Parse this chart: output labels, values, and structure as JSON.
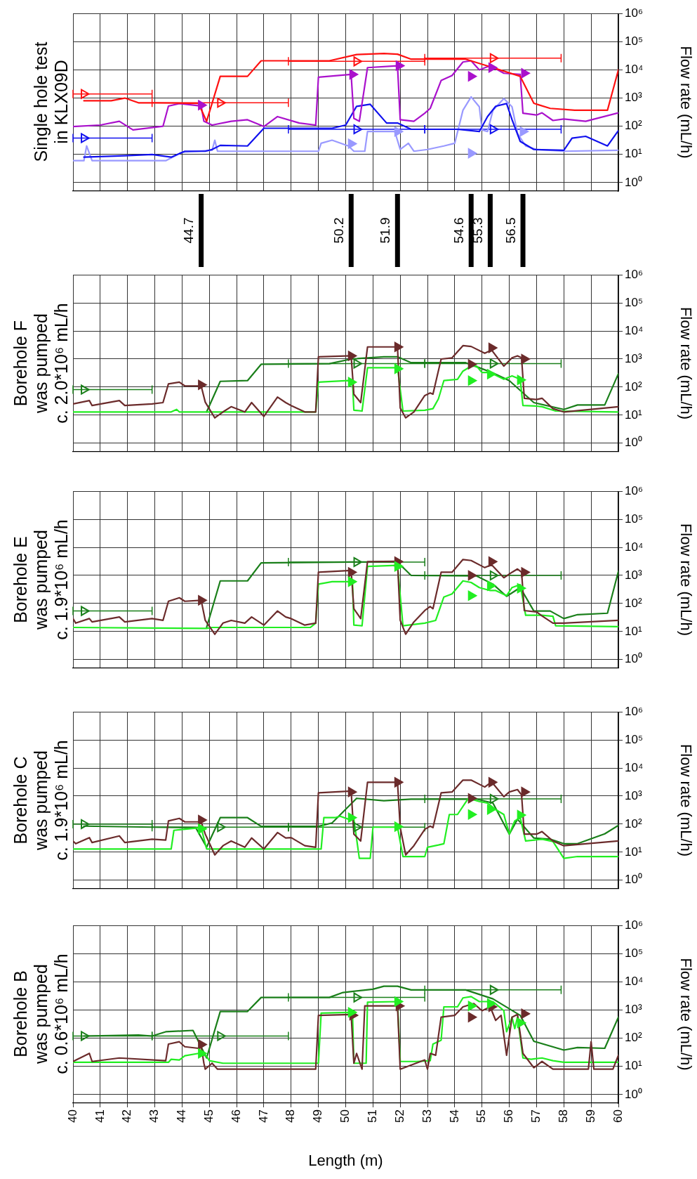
{
  "chart_data": [
    {
      "type": "line",
      "title": "Single hole test\nin KLX09D",
      "ylabel": "Flow rate (mL/h)",
      "xlim": [
        40,
        60
      ],
      "xticks": [
        40,
        41,
        42,
        43,
        44,
        45,
        46,
        47,
        48,
        49,
        50,
        51,
        52,
        53,
        54,
        55,
        56,
        57,
        58,
        59,
        60
      ],
      "ylim": [
        0.5,
        1000000
      ],
      "yticks": [
        {
          "value": 1,
          "label": "10⁰"
        },
        {
          "value": 10,
          "label": "10¹"
        },
        {
          "value": 100,
          "label": "10²"
        },
        {
          "value": 1000,
          "label": "10³"
        },
        {
          "value": 10000,
          "label": "10⁴"
        },
        {
          "value": 100000,
          "label": "10⁵"
        },
        {
          "value": 1000000,
          "label": "10⁶"
        }
      ],
      "log": "y",
      "grid": true,
      "tick_labels": "y",
      "series": [
        {
          "type": "line",
          "marker": "none",
          "color": "#ff1111",
          "x": [
            40.4,
            41.4,
            41.9,
            42.4,
            42.9,
            44.6,
            44.9,
            45.4,
            46.4,
            46.9,
            49.4,
            50.4,
            51.4,
            51.9,
            52.4,
            54.4,
            55.4,
            56.4,
            56.9,
            57.5,
            58.4,
            59.6,
            60
          ],
          "values": [
            800,
            800,
            1000,
            680,
            680,
            650,
            150,
            5900,
            5900,
            21000,
            21000,
            35000,
            38000,
            36000,
            24000,
            24000,
            12000,
            5900,
            650,
            430,
            370,
            370,
            10000
          ]
        },
        {
          "type": "line",
          "marker": "none",
          "color": "#aa11cc",
          "x": [
            40,
            41,
            41.7,
            42.2,
            43.3,
            43.5,
            43.9,
            44.7,
            44.8,
            45.1,
            45.8,
            46.4,
            47,
            47.5,
            48.3,
            48.9,
            49,
            50.2,
            50.3,
            50.5,
            50.8,
            51.9,
            52,
            52.5,
            52.9,
            53.1,
            53.5,
            53.9,
            54.3,
            54.6,
            54.9,
            55.3,
            55.8,
            56.4,
            56.5,
            57,
            57.2,
            57.6,
            58,
            58.8,
            60
          ],
          "values": [
            98,
            110,
            150,
            74,
            100,
            520,
            640,
            520,
            150,
            110,
            150,
            170,
            98,
            220,
            130,
            110,
            5500,
            6900,
            190,
            150,
            12000,
            14000,
            170,
            150,
            290,
            430,
            4200,
            6300,
            19000,
            21000,
            10000,
            14000,
            7600,
            6900,
            290,
            250,
            300,
            160,
            180,
            150,
            300
          ]
        },
        {
          "type": "line",
          "marker": "none",
          "color": "#1111ee",
          "x": [
            40.4,
            41.9,
            42.9,
            43.6,
            44.1,
            44.85,
            45.1,
            45.4,
            46.4,
            47,
            49.5,
            50,
            50.4,
            50.9,
            51.5,
            51.9,
            52.4,
            54.1,
            54.9,
            55.2,
            55.5,
            55.9,
            56.1,
            56.4,
            56.9,
            58,
            58.3,
            58.8,
            59.6,
            60
          ],
          "values": [
            8,
            9,
            10,
            8,
            13,
            13,
            15,
            21,
            20,
            85,
            85,
            110,
            510,
            600,
            130,
            130,
            78,
            78,
            65,
            220,
            510,
            640,
            170,
            29,
            15,
            14,
            38,
            44,
            20,
            70
          ]
        },
        {
          "type": "line",
          "marker": "none",
          "color": "#9999ff",
          "x": [
            40,
            40.4,
            40.5,
            40.7,
            43.4,
            44,
            45.1,
            45.2,
            45.3,
            49,
            49.1,
            49.5,
            50.1,
            50.3,
            50.7,
            50.8,
            51.8,
            52,
            52.3,
            52.5,
            53,
            53.6,
            54,
            54.3,
            54.6,
            54.9,
            55,
            55.2,
            55.4,
            55.8,
            56.1,
            56.3,
            56.6,
            57,
            58,
            60
          ],
          "values": [
            6,
            6,
            20,
            6,
            6,
            12,
            14,
            32,
            13,
            13,
            25,
            32,
            20,
            13,
            13,
            65,
            65,
            15,
            25,
            13,
            15,
            20,
            25,
            370,
            1100,
            490,
            74,
            65,
            370,
            960,
            490,
            56,
            20,
            15,
            13,
            14
          ]
        },
        {
          "type": "scatter",
          "marker": "triangle",
          "color": "#ff1111",
          "x": [
            40.4,
            45.4,
            50.4,
            55.4
          ],
          "values": [
            1400,
            680,
            20000,
            26000
          ],
          "xerrors": [
            [
              40,
              42.9
            ],
            2.5,
            2.5,
            2.5
          ]
        },
        {
          "type": "scatter",
          "marker": "triangle",
          "color": "#1111ee",
          "x": [
            40.4,
            50.4,
            55.4
          ],
          "values": [
            38,
            78,
            78
          ],
          "xerrors": [
            [
              40,
              42.9
            ],
            2.5,
            2.5
          ]
        },
        {
          "type": "scatter",
          "marker": "triangle",
          "color": "#aa11cc",
          "x": [
            44.7,
            50.25,
            51.95,
            54.6,
            55.35,
            56.55
          ],
          "values": [
            560,
            6900,
            14000,
            5900,
            12000,
            7600
          ]
        },
        {
          "type": "scatter",
          "marker": "triangle",
          "color": "#9999ff",
          "x": [
            50.2,
            51.9,
            54.6,
            56.5
          ],
          "values": [
            24,
            65,
            11,
            65
          ]
        }
      ],
      "ref_lines": [
        {
          "axis": "x",
          "value": 44.7,
          "label": "44.7"
        },
        {
          "axis": "x",
          "value": 50.2,
          "label": "50.2"
        },
        {
          "axis": "x",
          "value": 51.9,
          "label": "51.9"
        },
        {
          "axis": "x",
          "value": 54.6,
          "label": "54.6"
        },
        {
          "axis": "x",
          "value": 55.3,
          "label": "55.3"
        },
        {
          "axis": "x",
          "value": 56.5,
          "label": "56.5"
        }
      ]
    },
    {
      "type": "line",
      "title": "Borehole F\nwas pumped\nc. 2.0*10⁶ mL/h",
      "ylabel": "Flow rate (mL/h)",
      "xlim": [
        40,
        60
      ],
      "xticks": [
        40,
        41,
        42,
        43,
        44,
        45,
        46,
        47,
        48,
        49,
        50,
        51,
        52,
        53,
        54,
        55,
        56,
        57,
        58,
        59,
        60
      ],
      "ylim": [
        0.5,
        1000000
      ],
      "yticks": [
        {
          "value": 1,
          "label": "10⁰"
        },
        {
          "value": 10,
          "label": "10¹"
        },
        {
          "value": 100,
          "label": "10²"
        },
        {
          "value": 1000,
          "label": "10³"
        },
        {
          "value": 10000,
          "label": "10⁴"
        },
        {
          "value": 100000,
          "label": "10⁵"
        },
        {
          "value": 1000000,
          "label": "10⁶"
        }
      ],
      "log": "y",
      "grid": true,
      "tick_labels": "y",
      "series": [
        {
          "type": "line",
          "marker": "none",
          "color": "#6b2b2b",
          "x": [
            40,
            40.6,
            40.7,
            41.7,
            41.9,
            42.9,
            43.3,
            43.5,
            43.9,
            44.1,
            44.7,
            44.85,
            45.2,
            45.5,
            45.8,
            46.3,
            46.55,
            47,
            47.5,
            47.8,
            48,
            48.5,
            48.9,
            49,
            50.2,
            50.3,
            50.55,
            50.8,
            51.9,
            52,
            52.2,
            52.5,
            52.9,
            53.1,
            53.2,
            53.5,
            53.9,
            54.3,
            54.6,
            55.1,
            55.35,
            55.8,
            56.1,
            56.3,
            56.45,
            56.55,
            57,
            57.2,
            57.6,
            58,
            60
          ],
          "values": [
            25,
            33,
            22,
            33,
            22,
            25,
            28,
            130,
            150,
            110,
            110,
            29,
            8,
            13,
            20,
            13,
            28,
            9,
            44,
            28,
            22,
            13,
            13,
            1200,
            1300,
            56,
            28,
            2700,
            2700,
            18,
            8,
            13,
            50,
            62,
            56,
            1000,
            1100,
            3000,
            2800,
            1600,
            2100,
            560,
            1100,
            1300,
            1100,
            40,
            36,
            40,
            17,
            13,
            20
          ]
        },
        {
          "type": "line",
          "marker": "none",
          "color": "#22ee22",
          "x": [
            40,
            43.6,
            43.8,
            43.9,
            48.9,
            49,
            50.1,
            50.25,
            50.3,
            50.6,
            50.8,
            51.9,
            52.1,
            52.9,
            53.2,
            53.4,
            53.6,
            54.1,
            54.3,
            54.6,
            54.8,
            55,
            55.3,
            55.8,
            56.1,
            56.4,
            56.5,
            57,
            57.2,
            57.7,
            60
          ],
          "values": [
            13,
            13,
            16,
            13,
            13,
            150,
            170,
            150,
            15,
            14,
            490,
            490,
            14,
            15,
            17,
            38,
            170,
            190,
            370,
            560,
            560,
            330,
            330,
            190,
            250,
            190,
            22,
            21,
            20,
            14,
            13
          ]
        },
        {
          "type": "line",
          "marker": "none",
          "color": "#1a7f1a",
          "x": [
            44.9,
            45.4,
            46.4,
            46.9,
            49.4,
            50.2,
            51.4,
            51.9,
            52.4,
            54.4,
            54.9,
            55.4,
            56,
            56.9,
            58,
            58.5,
            59.5,
            60
          ],
          "values": [
            13,
            160,
            170,
            650,
            680,
            1000,
            1200,
            1200,
            740,
            740,
            490,
            320,
            170,
            28,
            16,
            23,
            23,
            300
          ]
        },
        {
          "type": "scatter",
          "marker": "triangle",
          "color": "#1a7f1a",
          "x": [
            40.4,
            50.4,
            55.4
          ],
          "values": [
            81,
            690,
            690
          ],
          "xerrors": [
            [
              40,
              42.9
            ],
            2.5,
            2.5
          ]
        },
        {
          "type": "scatter",
          "marker": "triangle",
          "color": "#22ee22",
          "x": [
            50.2,
            51.9,
            54.6,
            55.3,
            56.4
          ],
          "values": [
            150,
            450,
            170,
            290,
            180
          ]
        },
        {
          "type": "scatter",
          "marker": "triangle",
          "color": "#6b2b2b",
          "x": [
            44.7,
            50.2,
            51.9,
            54.6,
            55.35,
            56.55
          ],
          "values": [
            120,
            1300,
            2700,
            650,
            2500,
            1000
          ]
        }
      ]
    },
    {
      "type": "line",
      "title": "Borehole E\nwas pumped\nc. 1.9*10⁶ mL/h",
      "ylabel": "Flow rate (mL/h)",
      "xlim": [
        40,
        60
      ],
      "xticks": [
        40,
        41,
        42,
        43,
        44,
        45,
        46,
        47,
        48,
        49,
        50,
        51,
        52,
        53,
        54,
        55,
        56,
        57,
        58,
        59,
        60
      ],
      "ylim": [
        0.5,
        1000000
      ],
      "yticks": [
        {
          "value": 1,
          "label": "10⁰"
        },
        {
          "value": 10,
          "label": "10¹"
        },
        {
          "value": 100,
          "label": "10²"
        },
        {
          "value": 1000,
          "label": "10³"
        },
        {
          "value": 10000,
          "label": "10⁴"
        },
        {
          "value": 100000,
          "label": "10⁵"
        },
        {
          "value": 1000000,
          "label": "10⁶"
        }
      ],
      "log": "y",
      "grid": true,
      "tick_labels": "y",
      "series": [
        {
          "type": "line",
          "marker": "none",
          "color": "#6b2b2b",
          "x": [
            40,
            40.1,
            40.6,
            40.7,
            41.7,
            41.9,
            42.9,
            43.3,
            43.5,
            43.9,
            44.1,
            44.7,
            44.85,
            45.2,
            45.5,
            45.8,
            46.3,
            46.55,
            47,
            47.5,
            47.8,
            48,
            48.5,
            48.9,
            49,
            50.2,
            50.3,
            50.55,
            50.8,
            51.9,
            52,
            52.2,
            52.5,
            52.9,
            53.1,
            53.2,
            53.5,
            53.9,
            54.3,
            54.6,
            55.1,
            55.35,
            55.8,
            56.1,
            56.3,
            56.45,
            56.55,
            57,
            57.2,
            57.6,
            58,
            60
          ],
          "values": [
            29,
            20,
            29,
            22,
            33,
            22,
            29,
            25,
            120,
            160,
            120,
            130,
            25,
            8,
            20,
            25,
            20,
            33,
            17,
            54,
            33,
            29,
            17,
            20,
            1300,
            1500,
            65,
            29,
            3100,
            3200,
            25,
            8,
            22,
            56,
            78,
            65,
            1300,
            1300,
            3700,
            3400,
            1900,
            2400,
            830,
            1300,
            1700,
            1300,
            56,
            50,
            36,
            20,
            20,
            25
          ]
        },
        {
          "type": "line",
          "marker": "none",
          "color": "#22ee22",
          "x": [
            40,
            44.9,
            45.1,
            48.7,
            48.9,
            49,
            49.5,
            50.1,
            50.25,
            50.3,
            50.6,
            50.8,
            51.9,
            52.1,
            52.9,
            53.3,
            53.6,
            53.9,
            54.3,
            54.6,
            54.9,
            55.3,
            55.5,
            55.9,
            56.1,
            56.4,
            56.6,
            57.2,
            57.6,
            57.7,
            60
          ],
          "values": [
            14,
            13,
            14,
            14,
            20,
            490,
            600,
            600,
            560,
            17,
            16,
            2100,
            2300,
            16,
            20,
            25,
            170,
            220,
            640,
            560,
            370,
            290,
            290,
            190,
            370,
            470,
            38,
            38,
            35,
            16,
            15
          ]
        },
        {
          "type": "line",
          "marker": "none",
          "color": "#1a7f1a",
          "x": [
            44.9,
            45.4,
            46.4,
            46.9,
            50.2,
            51.9,
            52.4,
            54.8,
            55.4,
            55.9,
            56.4,
            56.9,
            57.5,
            58,
            58.5,
            59.6,
            60
          ],
          "values": [
            14,
            640,
            640,
            2800,
            3000,
            3000,
            1000,
            960,
            490,
            180,
            370,
            54,
            54,
            29,
            40,
            45,
            1400
          ]
        },
        {
          "type": "scatter",
          "marker": "triangle",
          "color": "#1a7f1a",
          "x": [
            40.4,
            50.4,
            55.4
          ],
          "values": [
            54,
            3000,
            1000
          ],
          "xerrors": [
            [
              40,
              42.9
            ],
            2.5,
            2.5
          ]
        },
        {
          "type": "scatter",
          "marker": "triangle",
          "color": "#22ee22",
          "x": [
            50.2,
            51.9,
            54.6,
            55.3,
            56.4
          ],
          "values": [
            600,
            2100,
            190,
            430,
            350
          ]
        },
        {
          "type": "scatter",
          "marker": "triangle",
          "color": "#6b2b2b",
          "x": [
            44.7,
            50.2,
            51.9,
            54.6,
            55.35,
            56.55
          ],
          "values": [
            130,
            1300,
            3100,
            1000,
            3100,
            1300
          ]
        }
      ]
    },
    {
      "type": "line",
      "title": "Borehole C\nwas pumped\nc. 1.9*10⁶ mL/h",
      "ylabel": "Flow rate (mL/h)",
      "xlim": [
        40,
        60
      ],
      "xticks": [
        40,
        41,
        42,
        43,
        44,
        45,
        46,
        47,
        48,
        49,
        50,
        51,
        52,
        53,
        54,
        55,
        56,
        57,
        58,
        59,
        60
      ],
      "ylim": [
        0.5,
        1000000
      ],
      "yticks": [
        {
          "value": 1,
          "label": "10⁰"
        },
        {
          "value": 10,
          "label": "10¹"
        },
        {
          "value": 100,
          "label": "10²"
        },
        {
          "value": 1000,
          "label": "10³"
        },
        {
          "value": 10000,
          "label": "10⁴"
        },
        {
          "value": 100000,
          "label": "10⁵"
        },
        {
          "value": 1000000,
          "label": "10⁶"
        }
      ],
      "log": "y",
      "grid": true,
      "tick_labels": "y",
      "series": [
        {
          "type": "line",
          "marker": "none",
          "color": "#6b2b2b",
          "x": [
            40,
            40.1,
            40.6,
            40.7,
            41.7,
            41.9,
            42.9,
            43.4,
            43.5,
            43.9,
            44.1,
            44.7,
            44.85,
            45.2,
            45.5,
            45.8,
            46.3,
            46.55,
            47,
            47.5,
            47.8,
            48,
            48.5,
            48.9,
            49,
            50.2,
            50.3,
            50.55,
            50.8,
            51.9,
            52,
            52.2,
            52.5,
            52.9,
            53.1,
            53.2,
            53.5,
            53.9,
            54.3,
            54.6,
            55.1,
            55.35,
            55.8,
            56,
            56.3,
            56.45,
            56.55,
            57,
            57.2,
            57.6,
            58,
            60
          ],
          "values": [
            25,
            20,
            33,
            22,
            38,
            22,
            29,
            27,
            130,
            160,
            120,
            120,
            44,
            8,
            17,
            25,
            15,
            32,
            13,
            50,
            32,
            33,
            17,
            15,
            1300,
            1500,
            44,
            25,
            3100,
            3100,
            75,
            8,
            17,
            65,
            85,
            75,
            1300,
            1400,
            3700,
            3700,
            2100,
            3200,
            950,
            1400,
            1700,
            1100,
            44,
            44,
            54,
            25,
            17,
            25
          ]
        },
        {
          "type": "line",
          "marker": "none",
          "color": "#22ee22",
          "x": [
            40,
            43.6,
            43.7,
            44.7,
            44.9,
            49.1,
            49.2,
            49.6,
            49.8,
            50.1,
            50.3,
            50.5,
            50.9,
            51,
            51.9,
            52.1,
            52.9,
            53,
            53.4,
            53.6,
            53.8,
            54.1,
            54.4,
            54.5,
            54.9,
            55.2,
            55.5,
            55.8,
            56,
            56.2,
            56.4,
            56.6,
            57.2,
            57.6,
            58,
            58.5,
            60
          ],
          "values": [
            13,
            13,
            60,
            75,
            13,
            13,
            170,
            170,
            190,
            150,
            150,
            6,
            6,
            78,
            78,
            7,
            7,
            15,
            18,
            20,
            220,
            220,
            600,
            830,
            640,
            560,
            330,
            220,
            44,
            130,
            170,
            25,
            29,
            24,
            6,
            7,
            7
          ]
        },
        {
          "type": "line",
          "marker": "none",
          "color": "#1a7f1a",
          "x": [
            40.4,
            42.9,
            44.5,
            44.9,
            45.4,
            46.4,
            46.9,
            49,
            49.5,
            50.4,
            51.4,
            52.4,
            52.9,
            54.8,
            55.4,
            56,
            56.3,
            56.9,
            57.5,
            58,
            58.5,
            59.5,
            60
          ],
          "values": [
            85,
            78,
            75,
            15,
            170,
            170,
            83,
            83,
            110,
            830,
            680,
            780,
            780,
            780,
            560,
            44,
            150,
            32,
            29,
            20,
            20,
            45,
            90
          ]
        },
        {
          "type": "scatter",
          "marker": "triangle",
          "color": "#1a7f1a",
          "x": [
            40.4,
            45.4,
            50.4,
            55.4
          ],
          "values": [
            100,
            78,
            78,
            790
          ],
          "xerrors": [
            [
              40,
              42.9
            ],
            2.5,
            2.5,
            2.5
          ]
        },
        {
          "type": "scatter",
          "marker": "triangle",
          "color": "#22ee22",
          "x": [
            44.7,
            50.2,
            51.9,
            54.6,
            55.3,
            56.4
          ],
          "values": [
            68,
            170,
            81,
            220,
            330,
            210
          ]
        },
        {
          "type": "scatter",
          "marker": "triangle",
          "color": "#6b2b2b",
          "x": [
            44.7,
            50.2,
            51.9,
            54.6,
            55.35,
            56.55
          ],
          "values": [
            140,
            1400,
            3100,
            830,
            3100,
            1400
          ]
        }
      ]
    },
    {
      "type": "line",
      "title": "Borehole B\nwas pumped\nc. 0.6*10⁶ mL/h",
      "xlabel": "Length (m)",
      "ylabel": "Flow rate (mL/h)",
      "xlim": [
        40,
        60
      ],
      "xticks": [
        40,
        41,
        42,
        43,
        44,
        45,
        46,
        47,
        48,
        49,
        50,
        51,
        52,
        53,
        54,
        55,
        56,
        57,
        58,
        59,
        60
      ],
      "ylim": [
        0.5,
        1000000
      ],
      "yticks": [
        {
          "value": 1,
          "label": "10⁰"
        },
        {
          "value": 10,
          "label": "10¹"
        },
        {
          "value": 100,
          "label": "10²"
        },
        {
          "value": 1000,
          "label": "10³"
        },
        {
          "value": 10000,
          "label": "10⁴"
        },
        {
          "value": 100000,
          "label": "10⁵"
        },
        {
          "value": 1000000,
          "label": "10⁶"
        }
      ],
      "log": "y",
      "grid": true,
      "series": [
        {
          "type": "line",
          "marker": "none",
          "color": "#6b2b2b",
          "x": [
            40,
            40.6,
            40.7,
            41.7,
            43.4,
            43.5,
            43.9,
            44.1,
            44.6,
            44.7,
            44.8,
            44.85,
            45.1,
            45.3,
            48.9,
            49,
            50.2,
            50.3,
            50.4,
            50.6,
            50.7,
            51.9,
            52,
            52.9,
            53,
            53.1,
            53.3,
            53.5,
            54,
            54.3,
            54.7,
            55,
            55.3,
            55.5,
            55.7,
            55.9,
            56.1,
            56.3,
            56.5,
            56.9,
            57.2,
            57.6,
            58.9,
            59,
            59.1,
            59.8,
            60
          ],
          "values": [
            15,
            29,
            15,
            20,
            16,
            62,
            75,
            50,
            44,
            53,
            13,
            8,
            13,
            8,
            8,
            650,
            700,
            13,
            29,
            8,
            1400,
            1400,
            8,
            17,
            8,
            29,
            25,
            560,
            650,
            1300,
            1700,
            950,
            1300,
            430,
            650,
            25,
            560,
            700,
            29,
            9,
            15,
            8,
            8,
            75,
            8,
            8,
            25
          ]
        },
        {
          "type": "line",
          "marker": "none",
          "color": "#22ee22",
          "x": [
            40,
            43.5,
            43.6,
            43.9,
            44.1,
            44.6,
            44.9,
            45,
            45.5,
            49,
            49.1,
            50.1,
            50.25,
            50.3,
            50.75,
            50.8,
            51.9,
            52,
            52.6,
            53.1,
            53.2,
            53.5,
            53.6,
            54.1,
            54.3,
            54.6,
            54.9,
            55.4,
            55.8,
            55.9,
            56.1,
            56.2,
            56.3,
            56.5,
            56.8,
            57.2,
            57.6,
            58,
            60
          ],
          "values": [
            14,
            14,
            18,
            17,
            24,
            29,
            23,
            16,
            13,
            13,
            780,
            830,
            780,
            13,
            13,
            1900,
            2000,
            15,
            15,
            16,
            62,
            85,
            1300,
            1300,
            2700,
            3000,
            2000,
            2000,
            950,
            170,
            560,
            220,
            560,
            20,
            18,
            20,
            16,
            14,
            14
          ]
        },
        {
          "type": "line",
          "marker": "none",
          "color": "#1a7f1a",
          "x": [
            40.4,
            42.4,
            42.9,
            43.4,
            44.4,
            44.9,
            45.4,
            46.4,
            46.9,
            49.4,
            49.9,
            51,
            51.4,
            51.9,
            52.4,
            54.4,
            55.4,
            56.4,
            56.9,
            58,
            58.5,
            59.5,
            60
          ],
          "values": [
            120,
            130,
            120,
            170,
            190,
            20,
            890,
            890,
            2800,
            2800,
            4200,
            5500,
            7000,
            7000,
            5200,
            5200,
            2500,
            650,
            78,
            38,
            47,
            44,
            560
          ]
        },
        {
          "type": "scatter",
          "marker": "triangle",
          "color": "#1a7f1a",
          "x": [
            40.4,
            45.4,
            50.4,
            55.4
          ],
          "values": [
            120,
            120,
            2800,
            5200
          ],
          "xerrors": [
            [
              40,
              42.9
            ],
            2.5,
            2.5,
            2.5
          ]
        },
        {
          "type": "scatter",
          "marker": "triangle",
          "color": "#22ee22",
          "x": [
            44.7,
            50.2,
            51.9,
            54.6,
            55.3,
            56.4
          ],
          "values": [
            29,
            830,
            2000,
            1400,
            1700,
            350
          ]
        },
        {
          "type": "scatter",
          "marker": "triangle",
          "color": "#6b2b2b",
          "x": [
            44.7,
            50.25,
            51.95,
            54.6,
            55.35,
            56.55
          ],
          "values": [
            60,
            650,
            1400,
            560,
            1300,
            740
          ]
        }
      ]
    }
  ]
}
